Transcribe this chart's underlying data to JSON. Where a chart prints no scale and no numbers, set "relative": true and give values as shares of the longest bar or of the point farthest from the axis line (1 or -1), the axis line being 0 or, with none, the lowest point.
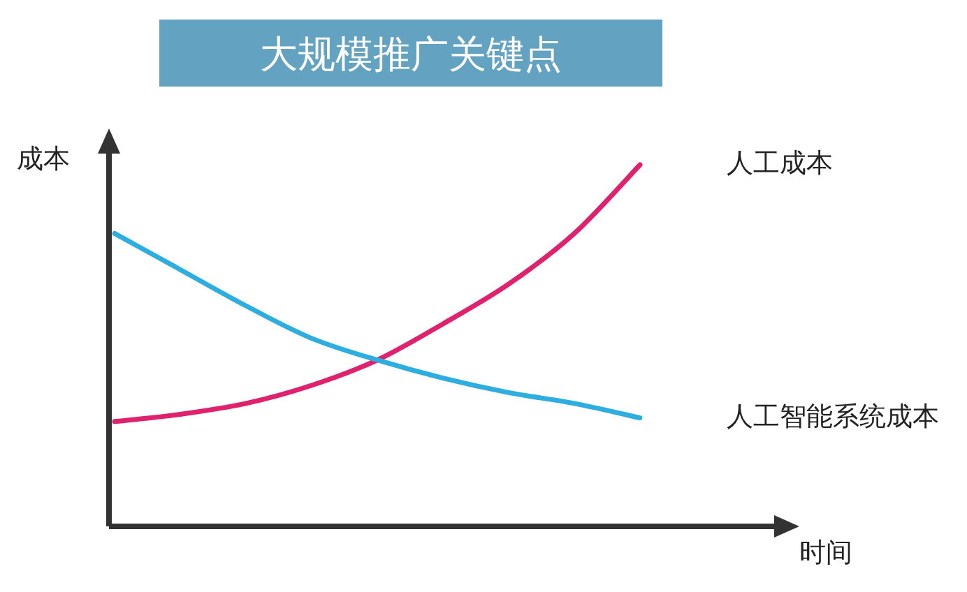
{
  "chart_data": {
    "type": "line",
    "title": "大规模推广关键点",
    "xlabel": "时间",
    "ylabel": "成本",
    "relative": true,
    "categories": [
      null,
      null,
      null,
      null,
      null,
      null,
      null,
      null,
      null
    ],
    "series": [
      {
        "name": "人工成本",
        "color": "#e0226e",
        "values": [
          0.29,
          0.31,
          0.34,
          0.39,
          0.46,
          0.56,
          0.67,
          0.81,
          1
        ]
      },
      {
        "name": "人工智能系统成本",
        "color": "#2eaee0",
        "values": [
          0.81,
          0.71,
          0.61,
          0.52,
          0.46,
          0.41,
          0.37,
          0.34,
          0.3
        ]
      }
    ]
  }
}
